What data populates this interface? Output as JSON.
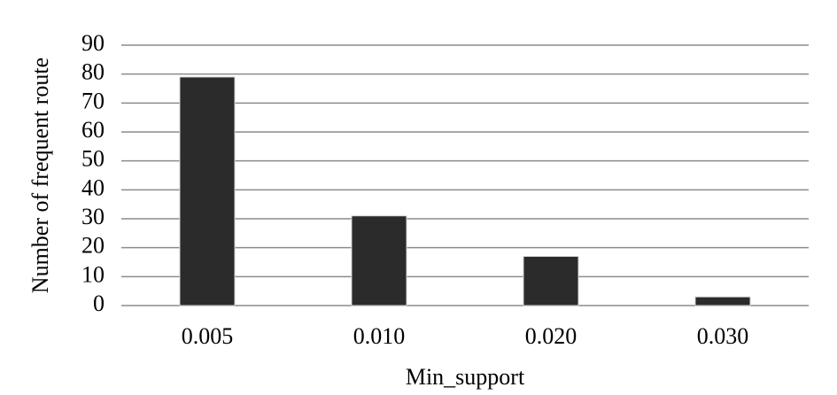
{
  "chart_data": {
    "type": "bar",
    "x_label": "Min_support",
    "y_label": "Number of frequent route",
    "categories": [
      "0.005",
      "0.010",
      "0.020",
      "0.030"
    ],
    "values": [
      79,
      31,
      17,
      3
    ],
    "color": "#2b2b2b",
    "ylim": [
      0,
      90
    ],
    "yticks": [
      0,
      10,
      20,
      30,
      40,
      50,
      60,
      70,
      80,
      90
    ],
    "grid": true
  }
}
